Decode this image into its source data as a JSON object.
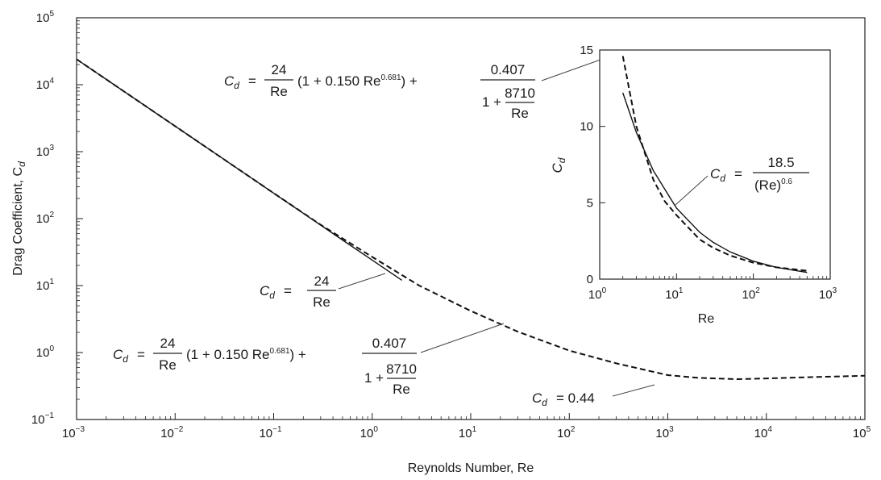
{
  "chart_data": [
    {
      "type": "line",
      "xlabel": "Reynolds Number, Re",
      "ylabel": "Drag Coefficient, C",
      "ylabel_sub": "d",
      "xscale": "log",
      "yscale": "log",
      "xlim": [
        0.001,
        100000
      ],
      "ylim": [
        0.1,
        100000
      ],
      "x_tick_exponents": [
        "−3",
        "−2",
        "−1",
        "0",
        "1",
        "2",
        "3",
        "4",
        "5"
      ],
      "y_tick_exponents": [
        "−1",
        "0",
        "1",
        "2",
        "3",
        "4",
        "5"
      ],
      "tick_base": "10",
      "grid": false,
      "series": [
        {
          "style": "solid",
          "x": [
            0.001,
            0.01,
            0.1,
            0.5,
            1,
            2
          ],
          "y": [
            24000,
            2400,
            240,
            48,
            24,
            12
          ]
        },
        {
          "style": "dashed",
          "x": [
            0.001,
            0.01,
            0.1,
            0.3,
            1,
            3,
            10,
            30,
            100,
            300,
            1000,
            2000,
            5000,
            10000,
            30000,
            100000
          ],
          "y": [
            24000,
            2400,
            240,
            81.0,
            26.8,
            10.0,
            4.19,
            2.05,
            1.07,
            0.69,
            0.46,
            0.42,
            0.4,
            0.41,
            0.43,
            0.45
          ]
        }
      ],
      "annotations": [
        {
          "parts": [
            "C",
            "d",
            " = ",
            "24",
            "Re"
          ]
        },
        {
          "parts": [
            "C",
            "d",
            " = ",
            "24",
            "Re",
            "(1 + 0.150 Re",
            "0.681",
            ") + ",
            "0.407",
            "1 + ",
            "8710",
            "Re"
          ]
        },
        {
          "parts": [
            "C",
            "d",
            " = 0.44"
          ]
        }
      ]
    },
    {
      "type": "line",
      "inset": true,
      "xlabel": "Re",
      "ylabel": "C",
      "ylabel_sub": "d",
      "xscale": "log",
      "yscale": "linear",
      "xlim": [
        1,
        1000
      ],
      "ylim": [
        0,
        15
      ],
      "x_tick_exponents": [
        "0",
        "1",
        "2",
        "3"
      ],
      "tick_base": "10",
      "y_ticks": [
        "0",
        "5",
        "10",
        "15"
      ],
      "series": [
        {
          "style": "solid",
          "x": [
            2,
            3,
            5,
            7,
            10,
            20,
            30,
            50,
            100,
            200,
            500
          ],
          "y": [
            12.2,
            9.6,
            7.1,
            5.9,
            4.65,
            3.07,
            2.41,
            1.78,
            1.17,
            0.77,
            0.44
          ]
        },
        {
          "style": "dashed",
          "x": [
            2,
            3,
            5,
            7,
            10,
            20,
            30,
            50,
            100,
            200,
            500
          ],
          "y": [
            14.6,
            10.0,
            6.5,
            5.1,
            4.19,
            2.6,
            2.05,
            1.54,
            1.07,
            0.77,
            0.55
          ]
        }
      ],
      "annotations": [
        {
          "parts": [
            "C",
            "d",
            " = ",
            "18.5",
            "(Re)",
            "0.6"
          ]
        },
        {
          "parts": [
            "C",
            "d",
            " = ",
            "24",
            "Re",
            "(1 + 0.150 Re",
            "0.681",
            ") + ",
            "0.407",
            "1 + ",
            "8710",
            "Re"
          ]
        }
      ]
    }
  ]
}
